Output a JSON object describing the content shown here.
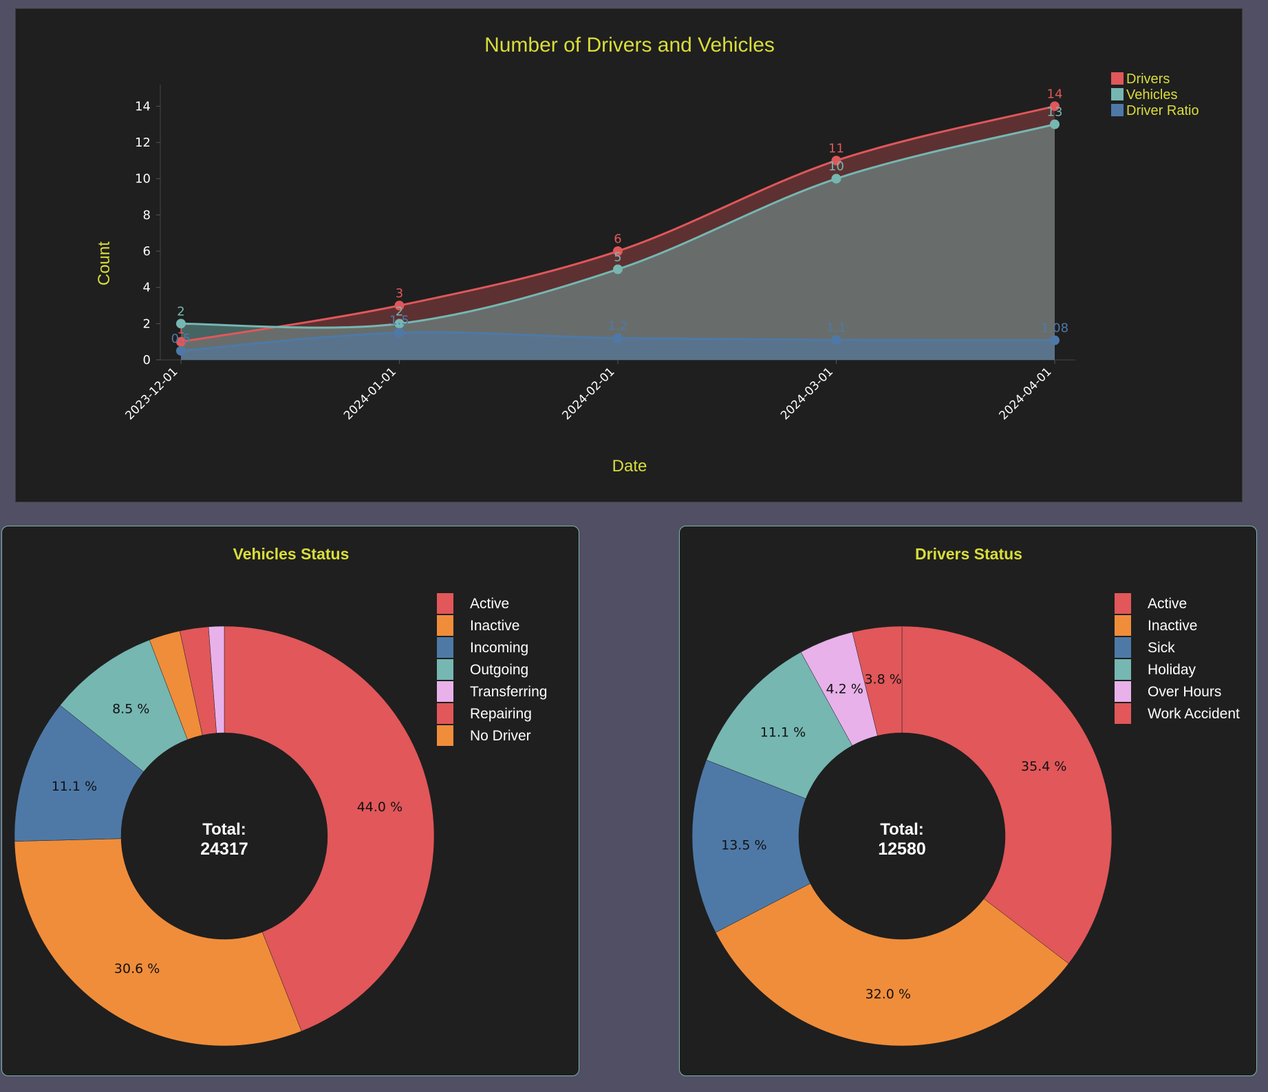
{
  "colors": {
    "background": "#514f63",
    "panel": "#1f1f1f",
    "title": "#d9dd3a",
    "red": "#e1575a",
    "orange": "#f08d3a",
    "blue": "#4e79a7",
    "teal": "#76b7b2",
    "pink": "#e8b1ea"
  },
  "line_chart": {
    "title": "Number of Drivers and Vehicles",
    "xlabel": "Date",
    "ylabel": "Count",
    "legend": [
      "Drivers",
      "Vehicles",
      "Driver Ratio"
    ]
  },
  "vehicles_donut": {
    "title": "Vehicles Status",
    "total_label": "Total:",
    "total_value": "24317"
  },
  "drivers_donut": {
    "title": "Drivers Status",
    "total_label": "Total:",
    "total_value": "12580"
  },
  "chart_data": [
    {
      "type": "line",
      "title": "Number of Drivers and Vehicles",
      "xlabel": "Date",
      "ylabel": "Count",
      "x": [
        "2023-12-01",
        "2024-01-01",
        "2024-02-01",
        "2024-03-01",
        "2024-04-01"
      ],
      "ylim": [
        0,
        15
      ],
      "yticks": [
        0,
        2,
        4,
        6,
        8,
        10,
        12,
        14
      ],
      "legend_position": "top-right",
      "area_fill": true,
      "series": [
        {
          "name": "Drivers",
          "color": "#e1575a",
          "values": [
            1,
            3,
            6,
            11,
            14
          ],
          "labels": [
            "1",
            "3",
            "6",
            "11",
            "14"
          ]
        },
        {
          "name": "Vehicles",
          "color": "#76b7b2",
          "values": [
            2,
            2,
            5,
            10,
            13
          ],
          "labels": [
            "2",
            "2",
            "5",
            "10",
            "13"
          ]
        },
        {
          "name": "Driver Ratio",
          "color": "#4e79a7",
          "values": [
            0.5,
            1.5,
            1.2,
            1.1,
            1.08
          ],
          "labels": [
            "0.5",
            "1.5",
            "1.2",
            "1.1",
            "1.08"
          ]
        }
      ]
    },
    {
      "type": "pie",
      "donut": true,
      "title": "Vehicles Status",
      "total": 24317,
      "legend_position": "top-right",
      "categories": [
        "Active",
        "Inactive",
        "Incoming",
        "Outgoing",
        "Transferring",
        "Repairing",
        "No Driver"
      ],
      "colors": [
        "#e1575a",
        "#f08d3a",
        "#4e79a7",
        "#76b7b2",
        "#e8b1ea",
        "#e1575a",
        "#f08d3a"
      ],
      "values": [
        44.0,
        30.6,
        11.1,
        8.5,
        1.2,
        2.2,
        2.4
      ],
      "labels": [
        "44.0 %",
        "30.6 %",
        "11.1 %",
        "8.5 %",
        "",
        "",
        ""
      ],
      "slice_order": [
        "Active",
        "Inactive",
        "Incoming",
        "Outgoing",
        "No Driver",
        "Repairing",
        "Transferring"
      ]
    },
    {
      "type": "pie",
      "donut": true,
      "title": "Drivers Status",
      "total": 12580,
      "legend_position": "top-right",
      "categories": [
        "Active",
        "Inactive",
        "Sick",
        "Holiday",
        "Over Hours",
        "Work Accident"
      ],
      "colors": [
        "#e1575a",
        "#f08d3a",
        "#4e79a7",
        "#76b7b2",
        "#e8b1ea",
        "#e1575a"
      ],
      "values": [
        35.4,
        32.0,
        13.5,
        11.1,
        4.2,
        3.8
      ],
      "labels": [
        "35.4 %",
        "32.0 %",
        "13.5 %",
        "11.1 %",
        "4.2 %",
        "3.8 %"
      ]
    }
  ]
}
